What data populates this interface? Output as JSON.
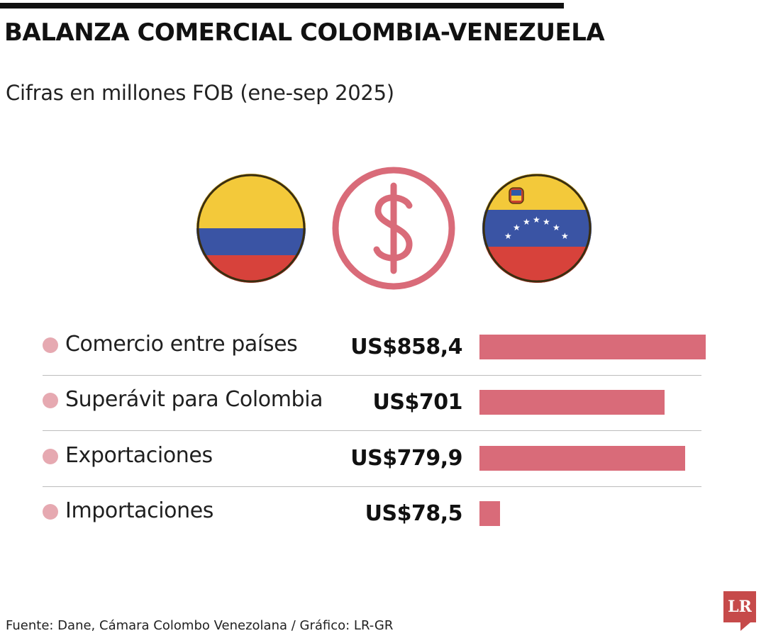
{
  "header": {
    "title": "BALANZA COMERCIAL COLOMBIA-VENEZUELA",
    "subtitle": "Cifras en millones FOB (ene-sep 2025)"
  },
  "icons": [
    "colombia-flag-icon",
    "dollar-icon",
    "venezuela-flag-icon"
  ],
  "colors": {
    "bar": "#d96b79",
    "dot": "#e6a9b1",
    "icon_accent": "#d96b79",
    "logo": "#c64a4a"
  },
  "chart_data": {
    "type": "bar",
    "orientation": "horizontal",
    "title": "BALANZA COMERCIAL COLOMBIA-VENEZUELA",
    "subtitle": "Cifras en millones FOB (ene-sep 2025)",
    "categories": [
      "Comercio entre países",
      "Superávit para Colombia",
      "Exportaciones",
      "Importaciones"
    ],
    "values": [
      858.4,
      701,
      779.9,
      78.5
    ],
    "value_labels": [
      "US$858,4",
      "US$701",
      "US$779,9",
      "US$78,5"
    ],
    "xlim": [
      0,
      858.4
    ],
    "grid": false,
    "legend": "none"
  },
  "footer": {
    "source": "Fuente: Dane, Cámara Colombo Venezolana / Gráfico: LR-GR",
    "logo_text": "LR"
  }
}
